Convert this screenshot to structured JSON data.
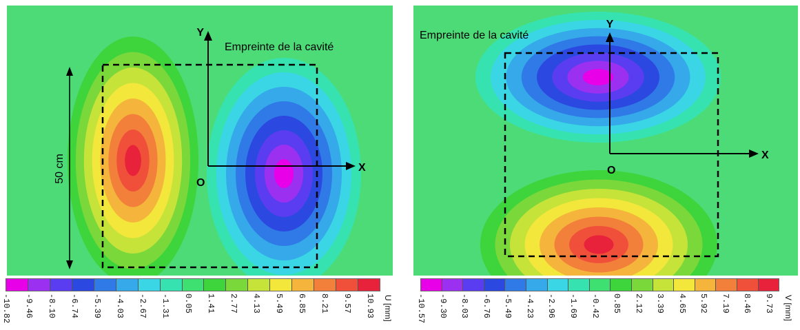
{
  "chart_data": [
    {
      "type": "heatmap",
      "title": "",
      "frame_label": "Empreinte de la cavité",
      "axis_x_label": "X",
      "axis_y_label": "Y",
      "origin_label": "O",
      "dimension_label": "50 cm",
      "colorbar_unit": "U [mm]",
      "colorbar_ticks": [
        "-10.82",
        "-9.46",
        "-8.10",
        "-6.74",
        "-5.39",
        "-4.03",
        "-2.67",
        "-1.31",
        "0.05",
        "1.41",
        "2.77",
        "4.13",
        "5.49",
        "6.85",
        "8.21",
        "9.57",
        "10.93"
      ],
      "features": [
        {
          "label": "positive lobe (left)",
          "peak_value": 10.93,
          "orientation": "vertical"
        },
        {
          "label": "negative lobe (right)",
          "peak_value": -10.82,
          "orientation": "vertical"
        }
      ]
    },
    {
      "type": "heatmap",
      "title": "",
      "frame_label": "Empreinte de la cavité",
      "axis_x_label": "X",
      "axis_y_label": "Y",
      "origin_label": "O",
      "colorbar_unit": "V [mm]",
      "colorbar_ticks": [
        "-10.57",
        "-9.30",
        "-8.03",
        "-6.76",
        "-5.49",
        "-4.23",
        "-2.96",
        "-1.69",
        "-0.42",
        "0.85",
        "2.12",
        "3.39",
        "4.65",
        "5.92",
        "7.19",
        "8.46",
        "9.73"
      ],
      "features": [
        {
          "label": "negative lobe (top)",
          "peak_value": -10.57,
          "orientation": "horizontal"
        },
        {
          "label": "positive lobe (bottom)",
          "peak_value": 9.73,
          "orientation": "horizontal"
        }
      ]
    }
  ],
  "colors": [
    "#e800e8",
    "#9b30f0",
    "#5a3df0",
    "#2b48e0",
    "#2f7ae6",
    "#35a9ea",
    "#3ad6e6",
    "#36e3b0",
    "#3de071",
    "#3ed43c",
    "#7ad83a",
    "#c6e33a",
    "#f2e73a",
    "#f5b43c",
    "#f2803a",
    "#f0503a",
    "#e8223a"
  ],
  "background_color": "#46d873"
}
